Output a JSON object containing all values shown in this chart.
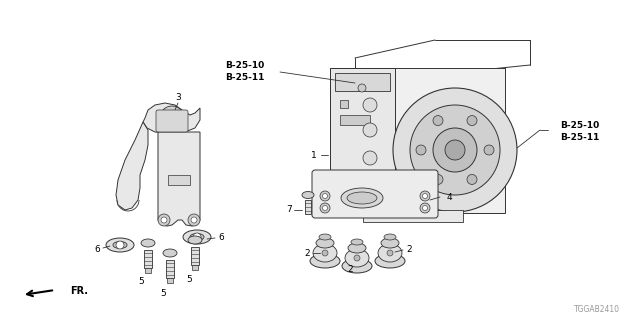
{
  "bg_color": "#ffffff",
  "line_color": "#333333",
  "watermark": "TGGAB2410",
  "ref_top": "B-25-10\nB-25-11",
  "ref_right": "B-25-10\nB-25-11"
}
